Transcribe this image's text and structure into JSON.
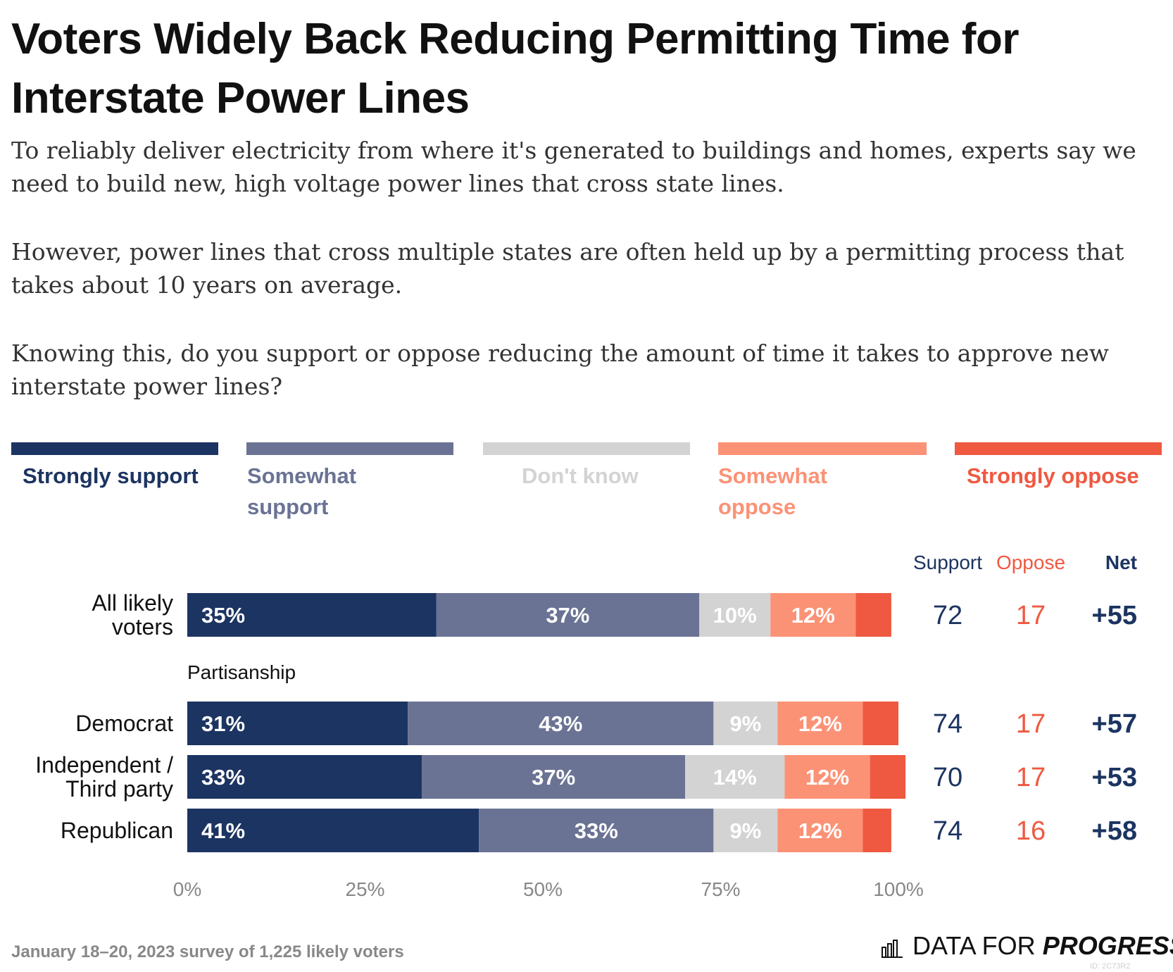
{
  "title": "Voters Widely Back Reducing Permitting Time for Interstate Power Lines",
  "subtitle": [
    "To reliably deliver electricity from where it's generated to buildings and homes, experts say we need to build new, high voltage power lines that cross state lines.",
    "However, power lines that cross multiple states are often held up by a permitting process that takes about 10 years on average.",
    "Knowing this, do you support or oppose reducing the amount of time it takes to approve new interstate power lines?"
  ],
  "legend": [
    {
      "label": "Strongly support",
      "color": "#1c3461"
    },
    {
      "label": "Somewhat support",
      "color": "#6a7394"
    },
    {
      "label": "Don't know",
      "color": "#d3d3d3"
    },
    {
      "label": "Somewhat oppose",
      "color": "#fb9276"
    },
    {
      "label": "Strongly oppose",
      "color": "#ef5941"
    }
  ],
  "footer": "January 18–20, 2023 survey of 1,225 likely voters",
  "brand": {
    "plain": "DATA FOR ",
    "bold": "PROGRESS"
  },
  "id_tag": "ID: 2C73R2",
  "chart_data": {
    "type": "bar",
    "orientation": "horizontal",
    "stacked": true,
    "xlim": [
      0,
      100
    ],
    "x_ticks": [
      "0%",
      "25%",
      "50%",
      "75%",
      "100%"
    ],
    "segment_colors": [
      "#1c3461",
      "#6a7394",
      "#d3d3d3",
      "#fb9276",
      "#ef5941"
    ],
    "column_headers": {
      "support": "Support",
      "oppose": "Oppose",
      "net": "Net"
    },
    "group_label": "Partisanship",
    "rows": [
      {
        "label": [
          "All likely",
          "voters"
        ],
        "values": [
          35,
          37,
          10,
          12,
          5
        ],
        "labels": [
          "35%",
          "37%",
          "10%",
          "12%",
          ""
        ],
        "support": "72",
        "oppose": "17",
        "net": "+55"
      },
      {
        "label": [
          "Democrat"
        ],
        "values": [
          31,
          43,
          9,
          12,
          5
        ],
        "labels": [
          "31%",
          "43%",
          "9%",
          "12%",
          ""
        ],
        "support": "74",
        "oppose": "17",
        "net": "+57"
      },
      {
        "label": [
          "Independent /",
          "Third party"
        ],
        "values": [
          33,
          37,
          14,
          12,
          5
        ],
        "labels": [
          "33%",
          "37%",
          "14%",
          "12%",
          ""
        ],
        "support": "70",
        "oppose": "17",
        "net": "+53"
      },
      {
        "label": [
          "Republican"
        ],
        "values": [
          41,
          33,
          9,
          12,
          4
        ],
        "labels": [
          "41%",
          "33%",
          "9%",
          "12%",
          ""
        ],
        "support": "74",
        "oppose": "16",
        "net": "+58"
      }
    ]
  }
}
